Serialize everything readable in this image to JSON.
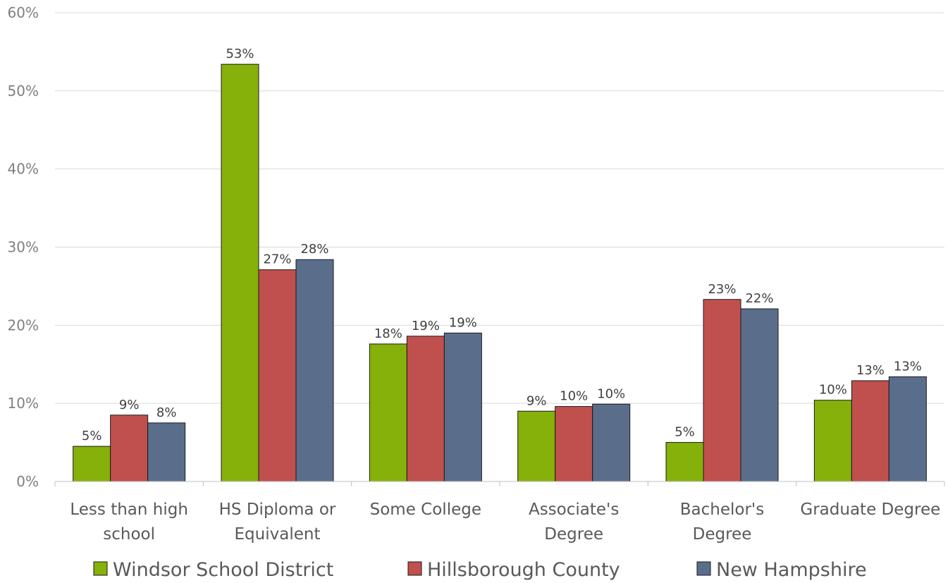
{
  "chart_data": {
    "type": "bar",
    "title": "",
    "xlabel": "",
    "ylabel": "",
    "categories": [
      [
        "Less than high",
        "school"
      ],
      [
        "HS Diploma or",
        "Equivalent"
      ],
      [
        "Some College"
      ],
      [
        "Associate's",
        "Degree"
      ],
      [
        "Bachelor's",
        "Degree"
      ],
      [
        "Graduate Degree"
      ]
    ],
    "series": [
      {
        "name": "Windsor School District",
        "color": "#86b00a",
        "values": [
          4.5,
          53.4,
          17.6,
          9.0,
          5.0,
          10.4
        ],
        "labels": [
          "5%",
          "53%",
          "18%",
          "9%",
          "5%",
          "10%"
        ]
      },
      {
        "name": "Hillsborough County",
        "color": "#c0504d",
        "values": [
          8.5,
          27.1,
          18.6,
          9.6,
          23.3,
          12.9
        ],
        "labels": [
          "9%",
          "27%",
          "19%",
          "10%",
          "23%",
          "13%"
        ]
      },
      {
        "name": "New Hampshire",
        "color": "#5a6e8c",
        "values": [
          7.5,
          28.4,
          19.0,
          9.9,
          22.1,
          13.4
        ],
        "labels": [
          "8%",
          "28%",
          "19%",
          "10%",
          "22%",
          "13%"
        ]
      }
    ],
    "ylim": [
      0,
      60
    ],
    "yticks": [
      0,
      10,
      20,
      30,
      40,
      50,
      60
    ],
    "ytick_labels": [
      "0%",
      "10%",
      "20%",
      "30%",
      "40%",
      "50%",
      "60%"
    ],
    "grid": true,
    "legend_position": "bottom"
  }
}
